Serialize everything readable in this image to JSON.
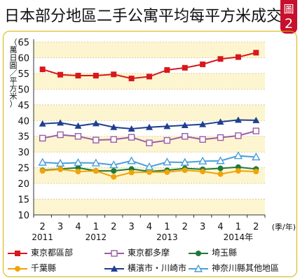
{
  "title": "日本部分地區二手公寓平均每平方米成交價",
  "badge": {
    "line1": "圖",
    "line2": "2"
  },
  "chart_data": {
    "type": "line",
    "ylabel": "（萬日圓／平方米）",
    "xunit": "(季/年)",
    "ylim": [
      10,
      65
    ],
    "yticks": [
      10,
      15,
      20,
      25,
      30,
      35,
      40,
      45,
      50,
      55,
      60,
      65
    ],
    "categories": [
      "2",
      "3",
      "4",
      "1",
      "2",
      "3",
      "4",
      "1",
      "2",
      "3",
      "4",
      "1",
      "2"
    ],
    "year_labels": [
      {
        "index": 0,
        "label": "2011"
      },
      {
        "index": 3,
        "label": "2012"
      },
      {
        "index": 7,
        "label": "2013"
      },
      {
        "index": 11,
        "label": "2014年"
      }
    ],
    "series": [
      {
        "name": "東京都區部",
        "color": "#d7191c",
        "marker": "square",
        "values": [
          56.3,
          54.6,
          54.3,
          54.3,
          54.7,
          53.4,
          54.0,
          56.1,
          56.8,
          57.9,
          59.6,
          60.2,
          61.6
        ]
      },
      {
        "name": "東京都多摩",
        "color": "#9b5ca6",
        "marker": "square-open",
        "values": [
          34.4,
          35.5,
          35.0,
          33.8,
          34.0,
          34.7,
          32.9,
          33.7,
          35.0,
          34.0,
          34.6,
          35.2,
          36.7
        ]
      },
      {
        "name": "埼玉縣",
        "color": "#1f7a3a",
        "marker": "circle",
        "values": [
          24.2,
          24.6,
          25.0,
          24.0,
          24.0,
          24.6,
          23.8,
          24.2,
          24.8,
          24.5,
          24.8,
          25.2,
          24.6
        ]
      },
      {
        "name": "千葉縣",
        "color": "#f0a30a",
        "marker": "circle",
        "values": [
          24.0,
          24.5,
          23.8,
          24.0,
          22.1,
          23.5,
          23.6,
          23.6,
          24.2,
          23.8,
          23.0,
          24.0,
          23.8
        ]
      },
      {
        "name": "橫濱市・川崎市",
        "color": "#1f3f8f",
        "marker": "triangle",
        "values": [
          39.0,
          39.3,
          38.3,
          39.1,
          37.9,
          37.4,
          37.9,
          38.2,
          38.5,
          38.8,
          39.6,
          40.2,
          40.1
        ]
      },
      {
        "name": "神奈川縣其他地區",
        "color": "#4a9fd8",
        "marker": "triangle-open",
        "values": [
          26.7,
          26.4,
          26.6,
          26.5,
          25.9,
          27.2,
          25.3,
          26.8,
          26.7,
          27.1,
          27.2,
          28.8,
          28.4
        ]
      }
    ]
  }
}
